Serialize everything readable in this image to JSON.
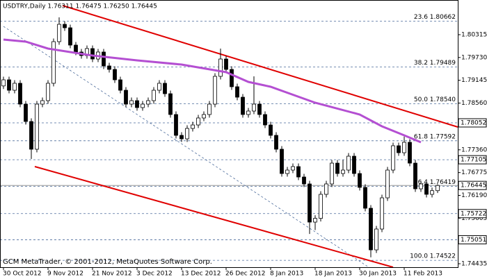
{
  "chart_data": {
    "type": "candlestick",
    "title": "USDTRY,Daily  1.76311 1.76475 1.76250 1.76445",
    "copyright": "GCM MetaTrader, © 2001-2012, MetaQuotes Software Corp.",
    "categories": [
      "30 Oct 2012",
      null,
      null,
      null,
      null,
      null,
      null,
      null,
      "9 Nov 2012",
      null,
      null,
      null,
      null,
      null,
      null,
      null,
      "21 Nov 2012",
      null,
      null,
      null,
      null,
      null,
      null,
      null,
      "3 Dec 2012",
      null,
      null,
      null,
      null,
      null,
      null,
      null,
      "13 Dec 2012",
      null,
      null,
      null,
      null,
      null,
      null,
      null,
      "26 Dec 2012",
      null,
      null,
      null,
      null,
      null,
      null,
      null,
      "8 Jan 2013",
      null,
      null,
      null,
      null,
      null,
      null,
      null,
      "18 Jan 2013",
      null,
      null,
      null,
      null,
      null,
      null,
      null,
      "30 Jan 2013",
      null,
      null,
      null,
      null,
      null,
      null,
      null,
      "11 Feb 2013",
      null,
      null,
      null,
      null,
      null,
      null
    ],
    "ohlc": [
      [
        1.79,
        1.79237,
        1.7892,
        1.79157
      ],
      [
        1.79157,
        1.79237,
        1.78809,
        1.78889
      ],
      [
        1.78889,
        1.79148,
        1.78809,
        1.79068
      ],
      [
        1.79068,
        1.79148,
        1.78453,
        1.78533
      ],
      [
        1.78533,
        1.78613,
        1.78007,
        1.78087
      ],
      [
        1.78087,
        1.78167,
        1.77125,
        1.77375
      ],
      [
        1.77375,
        1.78613,
        1.77295,
        1.78533
      ],
      [
        1.78533,
        1.78702,
        1.78453,
        1.78622
      ],
      [
        1.78622,
        1.79148,
        1.78542,
        1.79068
      ],
      [
        1.79068,
        1.80217,
        1.78988,
        1.80137
      ],
      [
        1.80137,
        1.8076,
        1.80057,
        1.80582
      ],
      [
        1.80582,
        1.80662,
        1.80413,
        1.80493
      ],
      [
        1.80493,
        1.80573,
        1.79968,
        1.80048
      ],
      [
        1.80048,
        1.80128,
        1.7979,
        1.7987
      ],
      [
        1.7987,
        1.7995,
        1.797,
        1.7978
      ],
      [
        1.7978,
        1.80039,
        1.797,
        1.79959
      ],
      [
        1.79959,
        1.80039,
        1.79611,
        1.79691
      ],
      [
        1.79691,
        1.7995,
        1.79611,
        1.7987
      ],
      [
        1.7987,
        1.7995,
        1.79433,
        1.79513
      ],
      [
        1.79513,
        1.79593,
        1.79344,
        1.79424
      ],
      [
        1.79424,
        1.79504,
        1.79077,
        1.79157
      ],
      [
        1.79157,
        1.79237,
        1.78809,
        1.78889
      ],
      [
        1.78889,
        1.78969,
        1.78453,
        1.78533
      ],
      [
        1.78533,
        1.78702,
        1.78453,
        1.78622
      ],
      [
        1.78622,
        1.78702,
        1.78364,
        1.78444
      ],
      [
        1.78444,
        1.78613,
        1.78364,
        1.78533
      ],
      [
        1.78533,
        1.78702,
        1.78453,
        1.78622
      ],
      [
        1.78622,
        1.78969,
        1.78542,
        1.78889
      ],
      [
        1.78889,
        1.79148,
        1.78809,
        1.79068
      ],
      [
        1.79068,
        1.79148,
        1.7872,
        1.788
      ],
      [
        1.788,
        1.7888,
        1.78186,
        1.78266
      ],
      [
        1.78266,
        1.78346,
        1.77651,
        1.77731
      ],
      [
        1.77731,
        1.77811,
        1.77562,
        1.77642
      ],
      [
        1.77642,
        1.77989,
        1.77562,
        1.77909
      ],
      [
        1.77909,
        1.78078,
        1.77829,
        1.77998
      ],
      [
        1.77998,
        1.78257,
        1.77918,
        1.78177
      ],
      [
        1.78177,
        1.78346,
        1.78097,
        1.78266
      ],
      [
        1.78266,
        1.78613,
        1.78186,
        1.78533
      ],
      [
        1.78533,
        1.79326,
        1.78453,
        1.79246
      ],
      [
        1.79246,
        1.79959,
        1.79166,
        1.79691
      ],
      [
        1.79691,
        1.79771,
        1.79344,
        1.79424
      ],
      [
        1.79424,
        1.79504,
        1.78899,
        1.78979
      ],
      [
        1.78979,
        1.79059,
        1.78631,
        1.78711
      ],
      [
        1.78711,
        1.78791,
        1.78186,
        1.78266
      ],
      [
        1.78266,
        1.78435,
        1.78186,
        1.78355
      ],
      [
        1.78355,
        1.79246,
        1.78275,
        1.78533
      ],
      [
        1.78533,
        1.78613,
        1.78186,
        1.78266
      ],
      [
        1.78266,
        1.78346,
        1.77918,
        1.77998
      ],
      [
        1.77998,
        1.78078,
        1.77651,
        1.77731
      ],
      [
        1.77731,
        1.77811,
        1.77295,
        1.77375
      ],
      [
        1.77375,
        1.77455,
        1.76671,
        1.76751
      ],
      [
        1.76751,
        1.7692,
        1.76671,
        1.7684
      ],
      [
        1.7684,
        1.77009,
        1.7676,
        1.76929
      ],
      [
        1.76929,
        1.77009,
        1.76582,
        1.76662
      ],
      [
        1.76662,
        1.76742,
        1.76404,
        1.76484
      ],
      [
        1.76484,
        1.76564,
        1.752,
        1.75504
      ],
      [
        1.75504,
        1.7568,
        1.753,
        1.756
      ],
      [
        1.756,
        1.76297,
        1.7552,
        1.76217
      ],
      [
        1.76217,
        1.76564,
        1.76137,
        1.76484
      ],
      [
        1.76484,
        1.77098,
        1.76404,
        1.77018
      ],
      [
        1.77018,
        1.77098,
        1.76671,
        1.76751
      ],
      [
        1.76751,
        1.77098,
        1.76671,
        1.7684
      ],
      [
        1.7684,
        1.77276,
        1.7676,
        1.77196
      ],
      [
        1.77196,
        1.77276,
        1.76671,
        1.76751
      ],
      [
        1.76751,
        1.76831,
        1.76315,
        1.76395
      ],
      [
        1.76395,
        1.76475,
        1.7578,
        1.7586
      ],
      [
        1.7586,
        1.7594,
        1.746,
        1.74791
      ],
      [
        1.74791,
        1.75406,
        1.74711,
        1.75326
      ],
      [
        1.75326,
        1.76207,
        1.75246,
        1.76127
      ],
      [
        1.76127,
        1.7692,
        1.76047,
        1.7684
      ],
      [
        1.7684,
        1.77544,
        1.7676,
        1.77464
      ],
      [
        1.77464,
        1.77544,
        1.77205,
        1.77285
      ],
      [
        1.77285,
        1.777,
        1.77205,
        1.77553
      ],
      [
        1.77553,
        1.77633,
        1.76938,
        1.77018
      ],
      [
        1.77018,
        1.77098,
        1.76279,
        1.76359
      ],
      [
        1.76359,
        1.76564,
        1.76279,
        1.76484
      ],
      [
        1.76484,
        1.76564,
        1.76137,
        1.76217
      ],
      [
        1.76217,
        1.76391,
        1.76137,
        1.76311
      ],
      [
        1.76311,
        1.76475,
        1.7625,
        1.76445
      ]
    ],
    "up_color": "#ffffff",
    "down_color": "#000000",
    "ma": {
      "color": "#b44fd2",
      "x": [
        0,
        4,
        8,
        16,
        24,
        32,
        40,
        44,
        48,
        56,
        64,
        68,
        72,
        75
      ],
      "values": [
        1.8019,
        1.80137,
        1.79959,
        1.7978,
        1.79656,
        1.79549,
        1.79353,
        1.79103,
        1.78979,
        1.78569,
        1.78266,
        1.77963,
        1.77731,
        1.77553
      ]
    },
    "ylim": [
      1.74346,
      1.81206
    ],
    "yticks": [
      1.80315,
      {
        "value": 1.7973,
        "label": "1.79730"
      },
      1.79145,
      {
        "value": 1.7856,
        "label": "1.78560"
      },
      {
        "value": 1.7736,
        "label": "1.77360"
      },
      1.76775,
      {
        "value": 1.7619,
        "label": "1.76190"
      },
      1.75605,
      1.74435
    ],
    "price_levels": [
      1.78052,
      1.77105,
      1.75722,
      1.75051
    ],
    "current_price": 1.76445,
    "fibo": [
      {
        "value": 1.80662,
        "label": "23.6 1.80662"
      },
      {
        "value": 1.79489,
        "label": "38.2 1.79489"
      },
      {
        "value": 1.7854,
        "label": "50.0 1.78540"
      },
      {
        "value": 1.77592,
        "label": "61.8 1.77592"
      },
      {
        "value": 1.76419,
        "label": "76.4 1.76419"
      },
      {
        "value": 1.74522,
        "label": "100.0 1.74522"
      }
    ]
  }
}
